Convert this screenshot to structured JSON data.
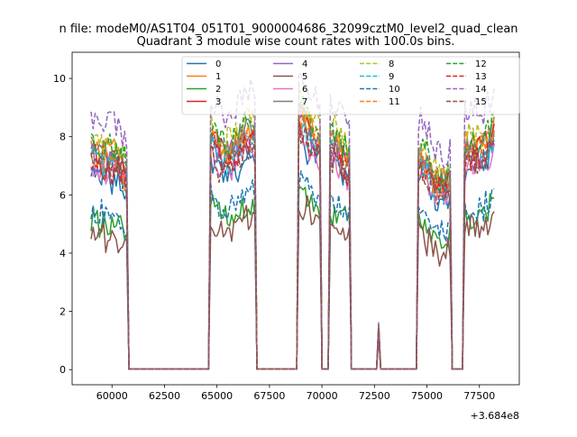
{
  "chart_data": {
    "type": "line",
    "suptitle": "n file: modeM0/AS1T04_051T01_9000004686_32099cztM0_level2_quad_clean",
    "title": "Quadrant 3 module wise count rates with 100.0s bins.",
    "xlabel": "",
    "ylabel": "",
    "x_offset_label": "+3.684e8",
    "xlim": [
      58100,
      79400
    ],
    "ylim": [
      -0.52,
      10.9
    ],
    "xticks": [
      60000,
      62500,
      65000,
      67500,
      70000,
      72500,
      75000,
      77500
    ],
    "xtick_labels": [
      "60000",
      "62500",
      "65000",
      "67500",
      "70000",
      "72500",
      "75000",
      "77500"
    ],
    "yticks": [
      0,
      2,
      4,
      6,
      8,
      10
    ],
    "ytick_labels": [
      "0",
      "2",
      "4",
      "6",
      "8",
      "10"
    ],
    "grid": false,
    "legend_position": "top-center",
    "legend_columns": 4,
    "x_step": 100,
    "segments": [
      {
        "x_start": 59000,
        "x_end": 60700,
        "kind": "data"
      },
      {
        "x_start": 60700,
        "x_end": 60800,
        "kind": "fall"
      },
      {
        "x_start": 60800,
        "x_end": 64600,
        "kind": "zero"
      },
      {
        "x_start": 64600,
        "x_end": 64700,
        "kind": "rise"
      },
      {
        "x_start": 64700,
        "x_end": 66800,
        "kind": "data"
      },
      {
        "x_start": 66800,
        "x_end": 66900,
        "kind": "fall"
      },
      {
        "x_start": 66900,
        "x_end": 68800,
        "kind": "zero"
      },
      {
        "x_start": 68800,
        "x_end": 68900,
        "kind": "rise"
      },
      {
        "x_start": 68900,
        "x_end": 69900,
        "kind": "data"
      },
      {
        "x_start": 69900,
        "x_end": 70000,
        "kind": "fall"
      },
      {
        "x_start": 70000,
        "x_end": 70300,
        "kind": "zero"
      },
      {
        "x_start": 70300,
        "x_end": 70400,
        "kind": "rise"
      },
      {
        "x_start": 70400,
        "x_end": 71300,
        "kind": "data"
      },
      {
        "x_start": 71300,
        "x_end": 71400,
        "kind": "fall"
      },
      {
        "x_start": 71400,
        "x_end": 72600,
        "kind": "zero"
      },
      {
        "x_start": 72700,
        "x_end": 72700,
        "kind": "spike"
      },
      {
        "x_start": 72800,
        "x_end": 74500,
        "kind": "zero"
      },
      {
        "x_start": 74500,
        "x_end": 74600,
        "kind": "rise"
      },
      {
        "x_start": 74600,
        "x_end": 76100,
        "kind": "data"
      },
      {
        "x_start": 76100,
        "x_end": 76200,
        "kind": "fall"
      },
      {
        "x_start": 76200,
        "x_end": 76700,
        "kind": "zero"
      },
      {
        "x_start": 76700,
        "x_end": 76800,
        "kind": "rise"
      },
      {
        "x_start": 76800,
        "x_end": 78200,
        "kind": "data"
      }
    ],
    "series": [
      {
        "name": "0",
        "color": "#1f77b4",
        "dash": "solid",
        "level": 7.0
      },
      {
        "name": "1",
        "color": "#ff7f0e",
        "dash": "solid",
        "level": 7.9
      },
      {
        "name": "2",
        "color": "#2ca02c",
        "dash": "solid",
        "level": 5.3
      },
      {
        "name": "3",
        "color": "#d62728",
        "dash": "solid",
        "level": 7.7
      },
      {
        "name": "4",
        "color": "#9467bd",
        "dash": "solid",
        "level": 7.5
      },
      {
        "name": "5",
        "color": "#8c564b",
        "dash": "solid",
        "level": 4.9
      },
      {
        "name": "6",
        "color": "#e377c2",
        "dash": "solid",
        "level": 7.1
      },
      {
        "name": "7",
        "color": "#7f7f7f",
        "dash": "solid",
        "level": 7.8
      },
      {
        "name": "8",
        "color": "#bcbd22",
        "dash": "dashed",
        "level": 8.2
      },
      {
        "name": "9",
        "color": "#17becf",
        "dash": "dashed",
        "level": 7.4
      },
      {
        "name": "10",
        "color": "#1f77b4",
        "dash": "dashed",
        "level": 5.7
      },
      {
        "name": "11",
        "color": "#ff7f0e",
        "dash": "dashed",
        "level": 7.6
      },
      {
        "name": "12",
        "color": "#2ca02c",
        "dash": "dashed",
        "level": 8.0
      },
      {
        "name": "13",
        "color": "#d62728",
        "dash": "dashed",
        "level": 7.3
      },
      {
        "name": "14",
        "color": "#9467bd",
        "dash": "dashed",
        "level": 9.0
      },
      {
        "name": "15",
        "color": "#8c564b",
        "dash": "dashed",
        "level": 7.2
      }
    ]
  }
}
